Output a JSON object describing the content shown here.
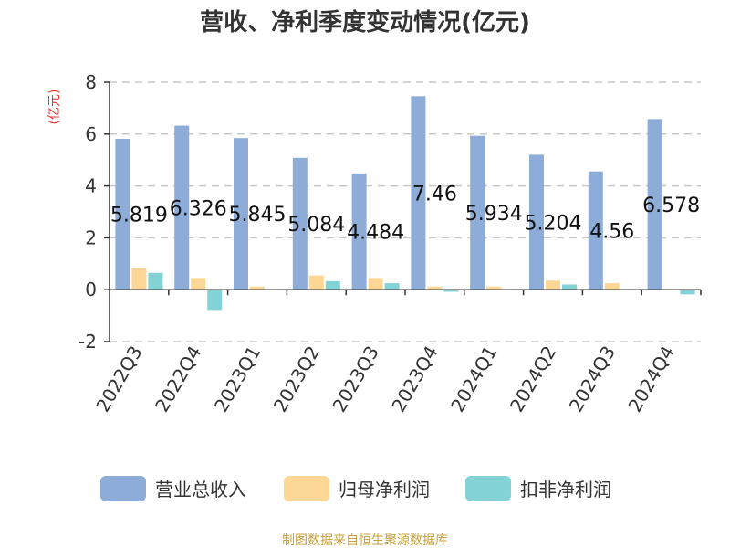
{
  "chart_data": {
    "type": "bar",
    "title": "营收、净利季度变动情况(亿元)",
    "ylabel": "(亿元)",
    "xlabel": "",
    "ylim": [
      -2,
      8
    ],
    "yticks": [
      -2,
      0,
      2,
      4,
      6,
      8
    ],
    "grid": true,
    "legend_position": "bottom",
    "categories": [
      "2022Q3",
      "2022Q4",
      "2023Q1",
      "2023Q2",
      "2023Q3",
      "2023Q4",
      "2024Q1",
      "2024Q2",
      "2024Q3",
      "2024Q4"
    ],
    "series": [
      {
        "name": "营业总收入",
        "color": "#8eacd8",
        "values": [
          5.819,
          6.326,
          5.845,
          5.084,
          4.484,
          7.46,
          5.934,
          5.204,
          4.56,
          6.578
        ],
        "labels": [
          "5.819",
          "6.326",
          "5.845",
          "5.084",
          "4.484",
          "7.46",
          "5.934",
          "5.204",
          "4.56",
          "6.578"
        ]
      },
      {
        "name": "归母净利润",
        "color": "#fdd796",
        "values": [
          0.85,
          0.45,
          0.12,
          0.55,
          0.45,
          0.12,
          0.12,
          0.35,
          0.25,
          0.03
        ]
      },
      {
        "name": "扣非净利润",
        "color": "#83d3d6",
        "values": [
          0.65,
          -0.78,
          0.0,
          0.33,
          0.25,
          -0.08,
          0.0,
          0.2,
          0.0,
          -0.18
        ]
      }
    ]
  },
  "footer": {
    "source": "制图数据来自恒生聚源数据库"
  }
}
